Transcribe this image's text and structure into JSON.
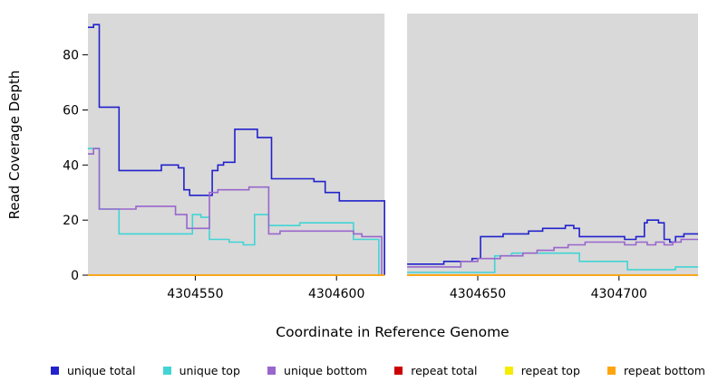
{
  "chart_data": {
    "type": "line",
    "title": "",
    "xlabel": "Coordinate in Reference Genome",
    "ylabel": "Read Coverage Depth",
    "xlim": [
      4304512,
      4304728
    ],
    "ylim": [
      0,
      95
    ],
    "x_ticks": [
      4304550,
      4304600,
      4304650,
      4304700
    ],
    "y_ticks": [
      0,
      20,
      40,
      60,
      80
    ],
    "plot_bg": "#d9d9d9",
    "grid": false,
    "legend_position": "bottom",
    "step": true,
    "gap": {
      "x0": 4304617,
      "x1": 4304625
    },
    "series": [
      {
        "name": "unique total",
        "color": "#2222cc",
        "segments": [
          [
            [
              4304512,
              90
            ],
            [
              4304514,
              91
            ],
            [
              4304516,
              61
            ],
            [
              4304522,
              61
            ],
            [
              4304523,
              38
            ],
            [
              4304537,
              38
            ],
            [
              4304538,
              40
            ],
            [
              4304543,
              40
            ],
            [
              4304544,
              39
            ],
            [
              4304546,
              31
            ],
            [
              4304548,
              29
            ],
            [
              4304555,
              29
            ],
            [
              4304556,
              38
            ],
            [
              4304558,
              40
            ],
            [
              4304560,
              41
            ],
            [
              4304564,
              53
            ],
            [
              4304571,
              53
            ],
            [
              4304572,
              50
            ],
            [
              4304576,
              50
            ],
            [
              4304577,
              35
            ],
            [
              4304592,
              34
            ],
            [
              4304596,
              30
            ],
            [
              4304601,
              27
            ],
            [
              4304617,
              0
            ]
          ],
          [
            [
              4304625,
              4
            ],
            [
              4304638,
              5
            ],
            [
              4304648,
              6
            ],
            [
              4304651,
              14
            ],
            [
              4304659,
              15
            ],
            [
              4304668,
              16
            ],
            [
              4304673,
              17
            ],
            [
              4304681,
              18
            ],
            [
              4304684,
              17
            ],
            [
              4304686,
              14
            ],
            [
              4304700,
              14
            ],
            [
              4304702,
              13
            ],
            [
              4304706,
              14
            ],
            [
              4304709,
              19
            ],
            [
              4304710,
              20
            ],
            [
              4304714,
              19
            ],
            [
              4304716,
              13
            ],
            [
              4304718,
              12
            ],
            [
              4304720,
              14
            ],
            [
              4304723,
              15
            ],
            [
              4304728,
              15
            ]
          ]
        ]
      },
      {
        "name": "unique top",
        "color": "#42d4d4",
        "segments": [
          [
            [
              4304512,
              46
            ],
            [
              4304516,
              24
            ],
            [
              4304523,
              15
            ],
            [
              4304549,
              22
            ],
            [
              4304552,
              21
            ],
            [
              4304555,
              13
            ],
            [
              4304562,
              12
            ],
            [
              4304567,
              11
            ],
            [
              4304571,
              22
            ],
            [
              4304576,
              18
            ],
            [
              4304587,
              19
            ],
            [
              4304606,
              13
            ],
            [
              4304615,
              0
            ]
          ],
          [
            [
              4304625,
              1
            ],
            [
              4304654,
              1
            ],
            [
              4304656,
              7
            ],
            [
              4304662,
              8
            ],
            [
              4304684,
              8
            ],
            [
              4304686,
              5
            ],
            [
              4304701,
              5
            ],
            [
              4304703,
              2
            ],
            [
              4304716,
              2
            ],
            [
              4304720,
              3
            ],
            [
              4304728,
              3
            ]
          ]
        ]
      },
      {
        "name": "unique bottom",
        "color": "#9966cc",
        "segments": [
          [
            [
              4304512,
              44
            ],
            [
              4304514,
              46
            ],
            [
              4304516,
              24
            ],
            [
              4304529,
              25
            ],
            [
              4304543,
              22
            ],
            [
              4304547,
              17
            ],
            [
              4304555,
              30
            ],
            [
              4304558,
              31
            ],
            [
              4304569,
              32
            ],
            [
              4304576,
              15
            ],
            [
              4304580,
              16
            ],
            [
              4304606,
              15
            ],
            [
              4304609,
              14
            ],
            [
              4304616,
              0
            ]
          ],
          [
            [
              4304625,
              3
            ],
            [
              4304640,
              3
            ],
            [
              4304644,
              5
            ],
            [
              4304650,
              6
            ],
            [
              4304658,
              7
            ],
            [
              4304666,
              8
            ],
            [
              4304671,
              9
            ],
            [
              4304677,
              10
            ],
            [
              4304682,
              11
            ],
            [
              4304688,
              12
            ],
            [
              4304699,
              12
            ],
            [
              4304702,
              11
            ],
            [
              4304706,
              12
            ],
            [
              4304710,
              11
            ],
            [
              4304713,
              12
            ],
            [
              4304716,
              11
            ],
            [
              4304719,
              12
            ],
            [
              4304722,
              13
            ],
            [
              4304728,
              13
            ]
          ]
        ]
      },
      {
        "name": "repeat total",
        "color": "#cc0000",
        "segments": [
          [
            [
              4304512,
              0
            ],
            [
              4304617,
              0
            ]
          ],
          [
            [
              4304625,
              0
            ],
            [
              4304728,
              0
            ]
          ]
        ]
      },
      {
        "name": "repeat top",
        "color": "#f5ec00",
        "segments": [
          [
            [
              4304512,
              0
            ],
            [
              4304617,
              0
            ]
          ],
          [
            [
              4304625,
              0
            ],
            [
              4304728,
              0
            ]
          ]
        ]
      },
      {
        "name": "repeat bottom",
        "color": "#ffa510",
        "segments": [
          [
            [
              4304512,
              0
            ],
            [
              4304617,
              0
            ]
          ],
          [
            [
              4304625,
              0
            ],
            [
              4304728,
              0
            ]
          ]
        ]
      }
    ]
  }
}
